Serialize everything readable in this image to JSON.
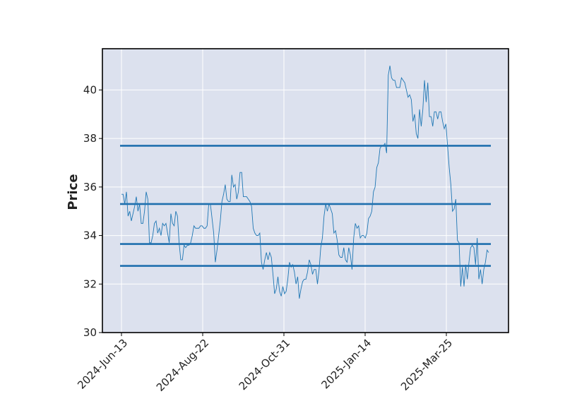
{
  "chart_data": {
    "type": "line",
    "title": "",
    "ylabel": "Price",
    "xlabel": "",
    "ylim": [
      30,
      41.7
    ],
    "x_tick_labels": [
      "2024-Jun-13",
      "2024-Aug-22",
      "2024-Oct-31",
      "2025-Jan-14",
      "2025-Mar-25"
    ],
    "y_ticks": [
      30,
      32,
      34,
      36,
      38,
      40
    ],
    "grid": true,
    "background": "#dce1ee",
    "line_color": "#1f77b4",
    "series": [
      {
        "values": [
          35.7,
          35.7,
          35.3,
          35.8,
          34.8,
          35.0,
          34.6,
          34.9,
          35.2,
          35.6,
          35.0,
          35.3,
          34.5,
          34.5,
          35.0,
          35.8,
          35.5,
          33.7,
          33.7,
          34.0,
          34.5,
          34.6,
          34.1,
          34.3,
          34.0,
          34.5,
          34.4,
          34.5,
          34.1,
          33.7,
          34.9,
          34.5,
          34.4,
          35.0,
          34.8,
          33.7,
          33.0,
          33.0,
          33.6,
          33.5,
          33.6,
          33.6,
          33.7,
          34.0,
          34.4,
          34.3,
          34.3,
          34.3,
          34.4,
          34.4,
          34.3,
          34.3,
          34.4,
          35.3,
          35.3,
          34.7,
          34.1,
          32.9,
          33.4,
          34.0,
          34.6,
          35.4,
          35.7,
          36.1,
          35.5,
          35.4,
          35.4,
          36.5,
          36.0,
          36.1,
          35.5,
          35.8,
          36.6,
          36.6,
          35.6,
          35.6,
          35.6,
          35.5,
          35.4,
          35.2,
          34.3,
          34.1,
          34.0,
          34.0,
          34.1,
          32.9,
          32.6,
          33.0,
          33.3,
          33.0,
          33.3,
          33.1,
          32.4,
          31.6,
          31.8,
          32.3,
          31.7,
          31.5,
          31.9,
          31.6,
          31.7,
          32.2,
          32.9,
          32.7,
          32.8,
          32.5,
          32.0,
          32.3,
          31.4,
          31.8,
          32.1,
          32.2,
          32.2,
          32.5,
          33.0,
          32.8,
          32.4,
          32.6,
          32.6,
          32.0,
          32.6,
          33.5,
          33.9,
          34.8,
          35.3,
          35.0,
          35.3,
          35.1,
          34.9,
          34.1,
          34.2,
          33.8,
          33.2,
          33.1,
          33.1,
          33.5,
          33.0,
          32.9,
          33.5,
          33.2,
          32.6,
          33.9,
          34.5,
          34.3,
          34.4,
          33.9,
          34.0,
          34.0,
          33.9,
          34.1,
          34.7,
          34.8,
          35.0,
          35.8,
          36.0,
          36.8,
          37.0,
          37.6,
          37.7,
          37.7,
          37.8,
          37.4,
          40.6,
          41.0,
          40.5,
          40.4,
          40.4,
          40.1,
          40.1,
          40.1,
          40.5,
          40.4,
          40.3,
          40.0,
          39.7,
          39.8,
          39.6,
          38.7,
          39.0,
          38.2,
          38.0,
          39.2,
          38.5,
          39.2,
          40.4,
          39.5,
          40.3,
          38.9,
          38.9,
          38.5,
          39.1,
          39.1,
          38.8,
          39.1,
          39.1,
          38.7,
          38.4,
          38.6,
          37.7,
          36.8,
          36.1,
          35.0,
          35.1,
          35.5,
          33.8,
          33.7,
          31.9,
          32.7,
          31.9,
          32.8,
          32.2,
          32.9,
          33.5,
          33.6,
          33.5,
          32.8,
          33.9,
          32.2,
          32.6,
          32.0,
          32.6,
          32.9,
          33.4,
          33.3
        ]
      }
    ],
    "horizontal_lines": [
      37.7,
      35.3,
      33.65,
      32.75
    ]
  }
}
